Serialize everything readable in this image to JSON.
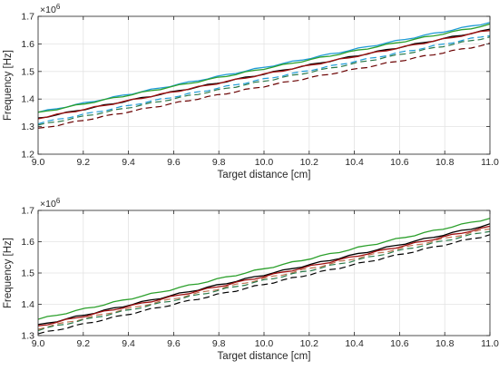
{
  "chart_data": [
    {
      "type": "line",
      "xlabel": "Target distance [cm]",
      "ylabel": "Frequency [Hz]",
      "y_exponent_label": "×10",
      "y_exponent_power": "6",
      "xlim": [
        9.0,
        11.0
      ],
      "ylim": [
        1.2,
        1.7
      ],
      "xticks": [
        "9.0",
        "9.2",
        "9.4",
        "9.6",
        "9.8",
        "10.0",
        "10.2",
        "10.4",
        "10.6",
        "10.8",
        "11.0"
      ],
      "yticks": [
        "1.2",
        "1.3",
        "1.4",
        "1.5",
        "1.6",
        "1.7"
      ],
      "grid": true,
      "series": [
        {
          "color": "#1f9bd6",
          "style": "solid",
          "x": [
            9.0,
            11.0
          ],
          "y": [
            1.352,
            1.678
          ]
        },
        {
          "color": "#2ca02c",
          "style": "solid",
          "x": [
            9.0,
            11.0
          ],
          "y": [
            1.35,
            1.67
          ]
        },
        {
          "color": "#000000",
          "style": "solid",
          "x": [
            9.0,
            11.0
          ],
          "y": [
            1.33,
            1.652
          ]
        },
        {
          "color": "#a01010",
          "style": "solid",
          "x": [
            9.0,
            11.0
          ],
          "y": [
            1.33,
            1.65
          ]
        },
        {
          "color": "#1f9bd6",
          "style": "dashed",
          "x": [
            9.0,
            11.0
          ],
          "y": [
            1.312,
            1.632
          ]
        },
        {
          "color": "#2a7a4a",
          "style": "dashed",
          "x": [
            9.0,
            11.0
          ],
          "y": [
            1.305,
            1.625
          ]
        },
        {
          "color": "#6a0000",
          "style": "dashed",
          "x": [
            9.0,
            11.0
          ],
          "y": [
            1.292,
            1.6
          ]
        }
      ]
    },
    {
      "type": "line",
      "xlabel": "Target distance [cm]",
      "ylabel": "Frequency [Hz]",
      "y_exponent_label": "×10",
      "y_exponent_power": "6",
      "xlim": [
        9.0,
        11.0
      ],
      "ylim": [
        1.3,
        1.7
      ],
      "xticks": [
        "9.0",
        "9.2",
        "9.4",
        "9.6",
        "9.8",
        "10.0",
        "10.2",
        "10.4",
        "10.6",
        "10.8",
        "11.0"
      ],
      "yticks": [
        "1.3",
        "1.4",
        "1.5",
        "1.6",
        "1.7"
      ],
      "grid": true,
      "series": [
        {
          "color": "#2ca02c",
          "style": "solid",
          "x": [
            9.0,
            11.0
          ],
          "y": [
            1.352,
            1.675
          ]
        },
        {
          "color": "#000000",
          "style": "solid",
          "x": [
            9.0,
            11.0
          ],
          "y": [
            1.333,
            1.655
          ]
        },
        {
          "color": "#a01010",
          "style": "solid",
          "x": [
            9.0,
            11.0
          ],
          "y": [
            1.33,
            1.648
          ]
        },
        {
          "color": "#c07050",
          "style": "dashed",
          "x": [
            9.0,
            11.0
          ],
          "y": [
            1.322,
            1.642
          ]
        },
        {
          "color": "#2a7a4a",
          "style": "dashed",
          "x": [
            9.0,
            11.0
          ],
          "y": [
            1.318,
            1.635
          ]
        },
        {
          "color": "#000000",
          "style": "dashed",
          "x": [
            9.0,
            11.0
          ],
          "y": [
            1.305,
            1.622
          ]
        }
      ]
    }
  ]
}
